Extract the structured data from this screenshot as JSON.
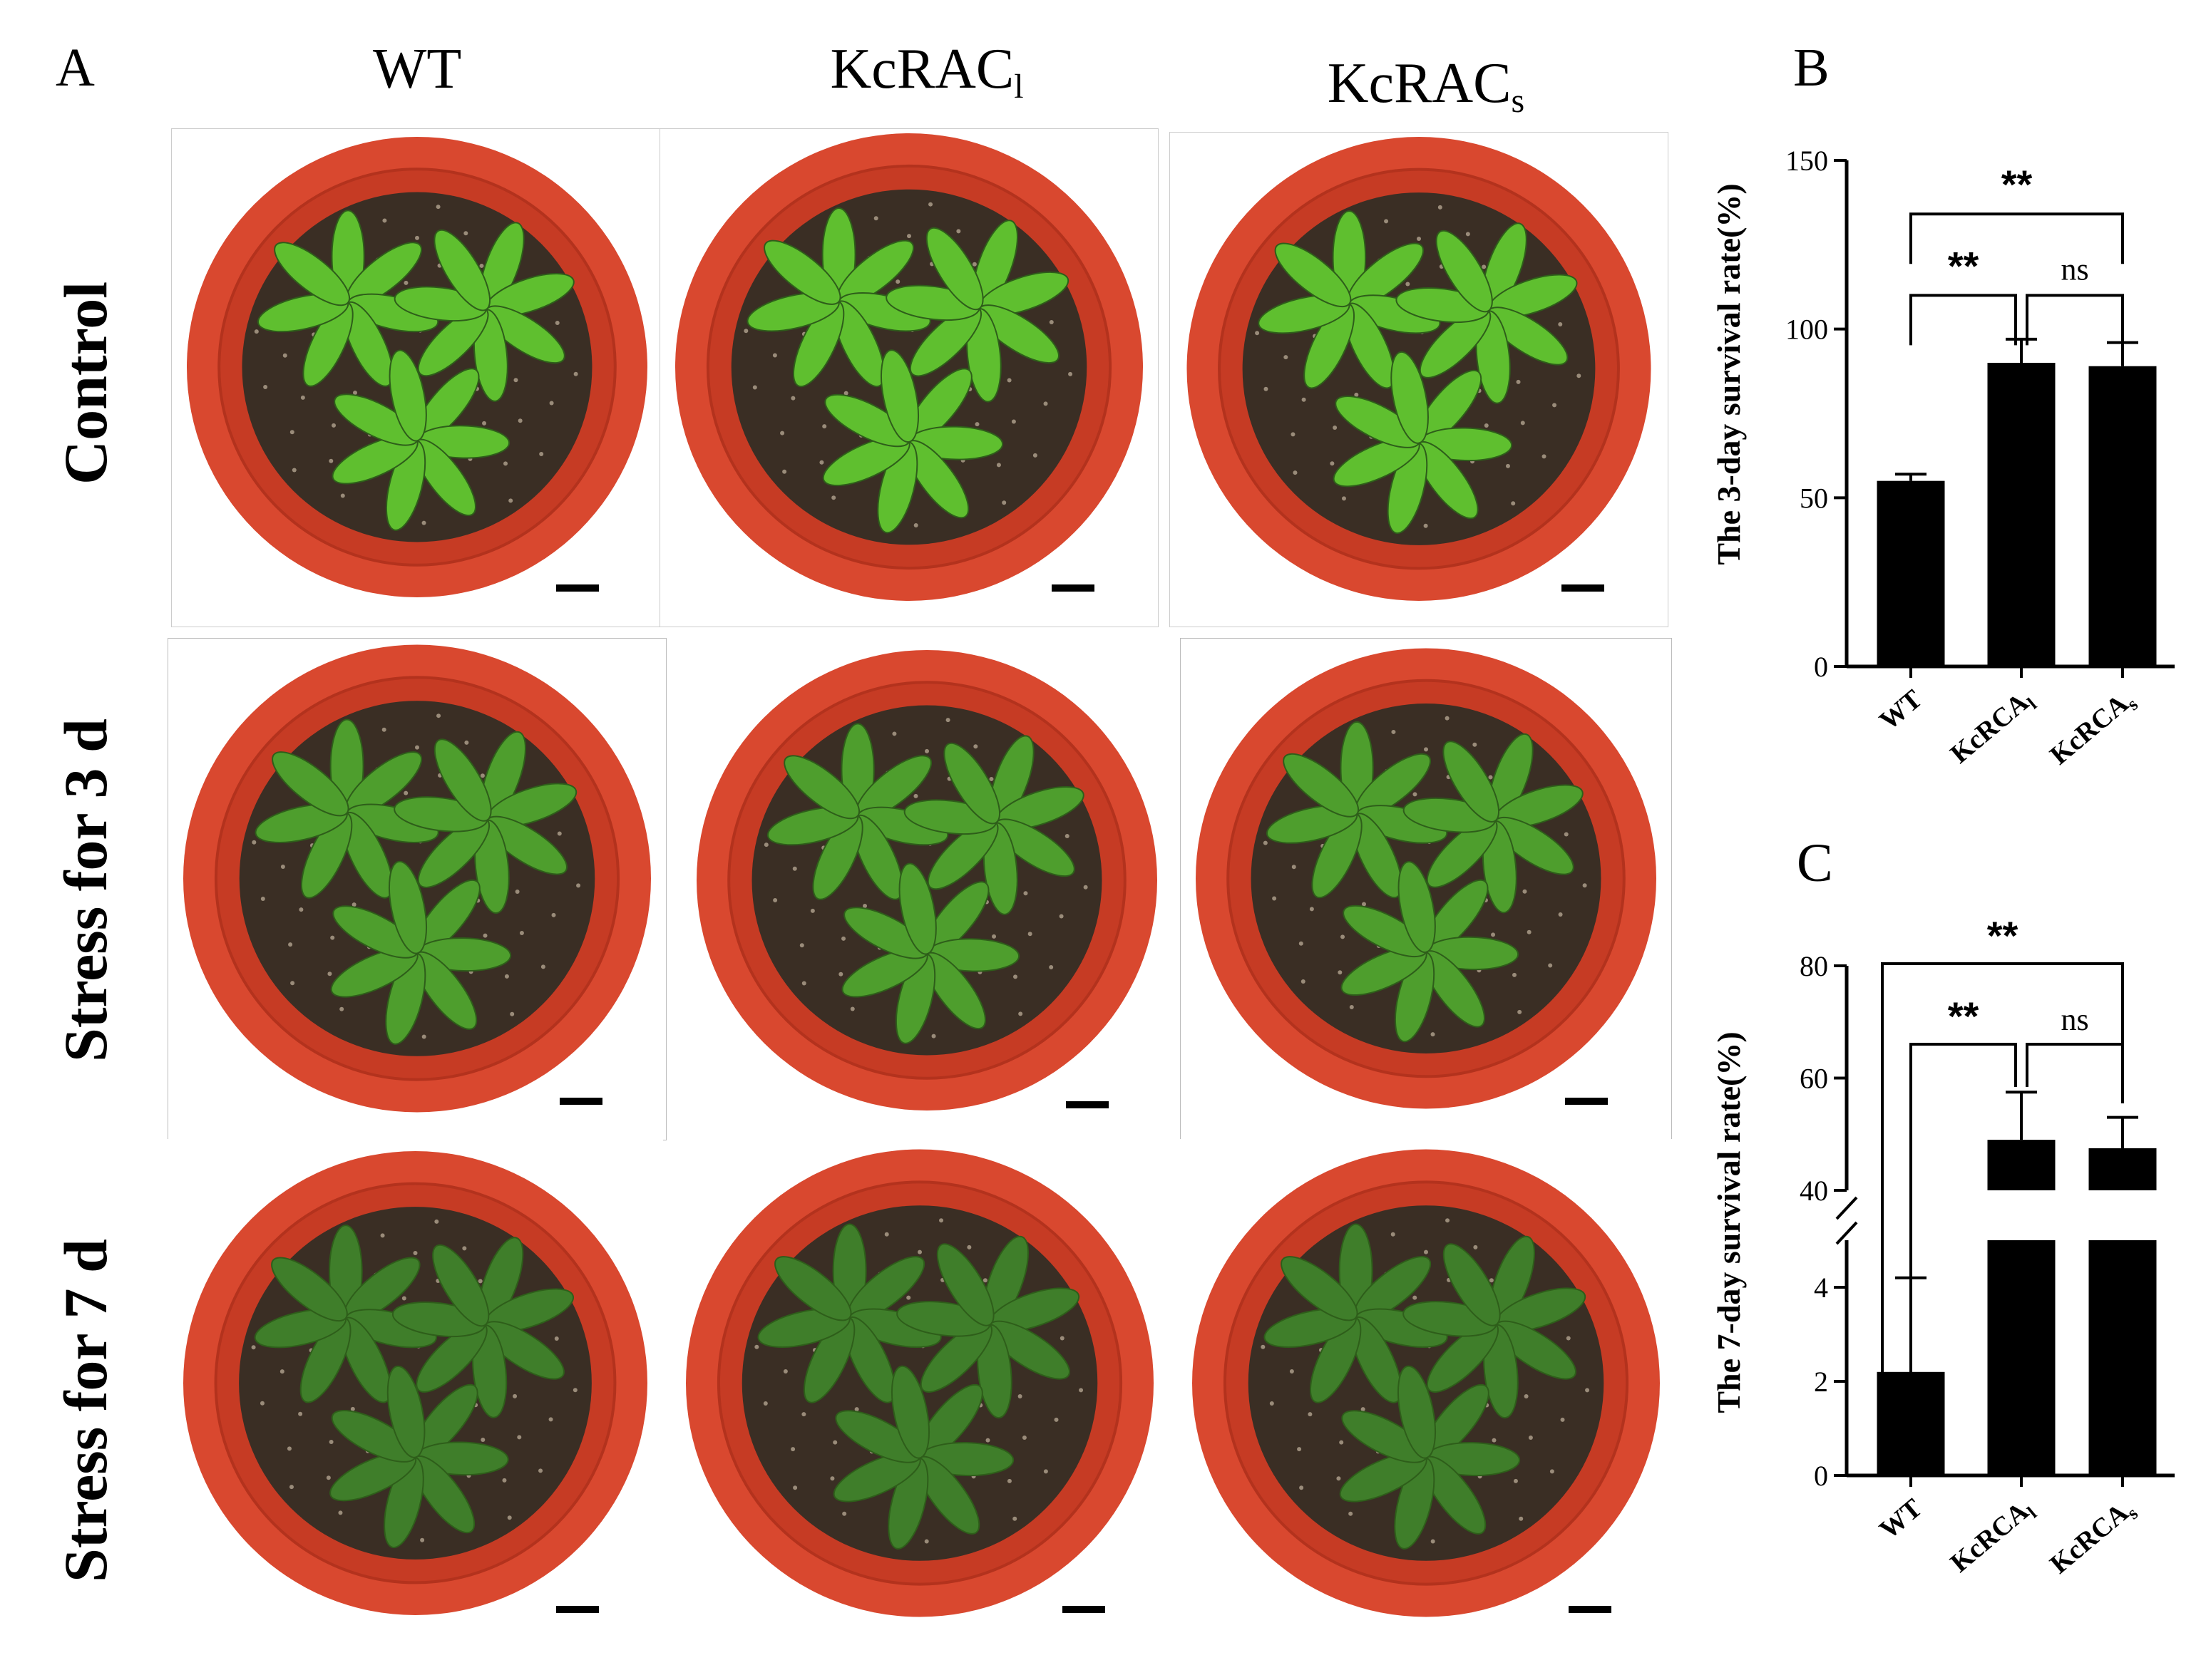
{
  "panel_labels": {
    "A": "A",
    "B": "B",
    "C": "C"
  },
  "columns": [
    {
      "base": "WT",
      "sub": ""
    },
    {
      "base": "KcRAC",
      "sub": "l"
    },
    {
      "base": "KcRAC",
      "sub": "s"
    }
  ],
  "rows": [
    "Control",
    "Stress for 3 d",
    "Stress for 7 d"
  ],
  "colors": {
    "pot": "#d9482f",
    "pot_rim": "#c63b24",
    "soil": "#3a2e24",
    "leaf_healthy": "#5fbf2f",
    "leaf_stressed": "#3f7e2a",
    "bar": "#000000"
  },
  "chart_data": [
    {
      "type": "bar",
      "panel": "B",
      "categories": [
        "WT",
        "KcRCA",
        "KcRCA"
      ],
      "category_subscripts": [
        "",
        "l",
        "s"
      ],
      "values": [
        55,
        90,
        89
      ],
      "errors": [
        2,
        7,
        7
      ],
      "ylabel": "The 3-day survival rate(%)",
      "ylim": [
        0,
        150
      ],
      "yticks": [
        "0",
        "50",
        "100",
        "150"
      ],
      "significance": [
        {
          "from": 0,
          "to": 1,
          "label": "**"
        },
        {
          "from": 1,
          "to": 2,
          "label": "ns"
        },
        {
          "from": 0,
          "to": 2,
          "label": "**"
        }
      ]
    },
    {
      "type": "bar",
      "panel": "C",
      "categories": [
        "WT",
        "KcRCA",
        "KcRCA"
      ],
      "category_subscripts": [
        "",
        "l",
        "s"
      ],
      "values": [
        2.2,
        49,
        47.5
      ],
      "errors": [
        2,
        8.5,
        5.5
      ],
      "ylabel": "The 7-day survival rate(%)",
      "axis_break": {
        "lower": [
          0,
          5
        ],
        "upper": [
          40,
          80
        ]
      },
      "yticks": [
        "0",
        "2",
        "4",
        "40",
        "60",
        "80"
      ],
      "significance": [
        {
          "from": 0,
          "to": 1,
          "label": "**"
        },
        {
          "from": 1,
          "to": 2,
          "label": "ns"
        },
        {
          "from": 0,
          "to": 2,
          "label": "**"
        }
      ]
    }
  ]
}
